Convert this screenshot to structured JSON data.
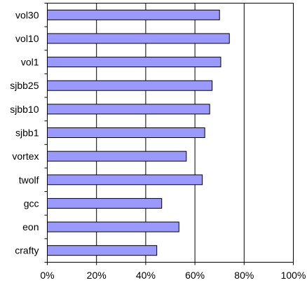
{
  "chart_data": {
    "type": "bar",
    "orientation": "horizontal",
    "title": "",
    "xlabel": "",
    "ylabel": "",
    "categories": [
      "vol30",
      "vol10",
      "vol1",
      "sjbb25",
      "sjbb10",
      "sjbb1",
      "vortex",
      "twolf",
      "gcc",
      "eon",
      "crafty"
    ],
    "values": [
      70,
      74,
      70.5,
      67,
      66,
      64,
      56.5,
      63,
      46.5,
      53.5,
      44.5
    ],
    "value_unit": "percent",
    "xlim": [
      0,
      100
    ],
    "x_ticks": [
      0,
      20,
      40,
      60,
      80,
      100
    ],
    "x_tick_labels": [
      "0%",
      "20%",
      "40%",
      "60%",
      "80%",
      "100%"
    ],
    "grid": "vertical",
    "legend": "none",
    "colors": {
      "bar_fill": "#9999ff",
      "bar_stroke": "#000000",
      "grid": "#000000",
      "background": "#ffffff"
    }
  }
}
